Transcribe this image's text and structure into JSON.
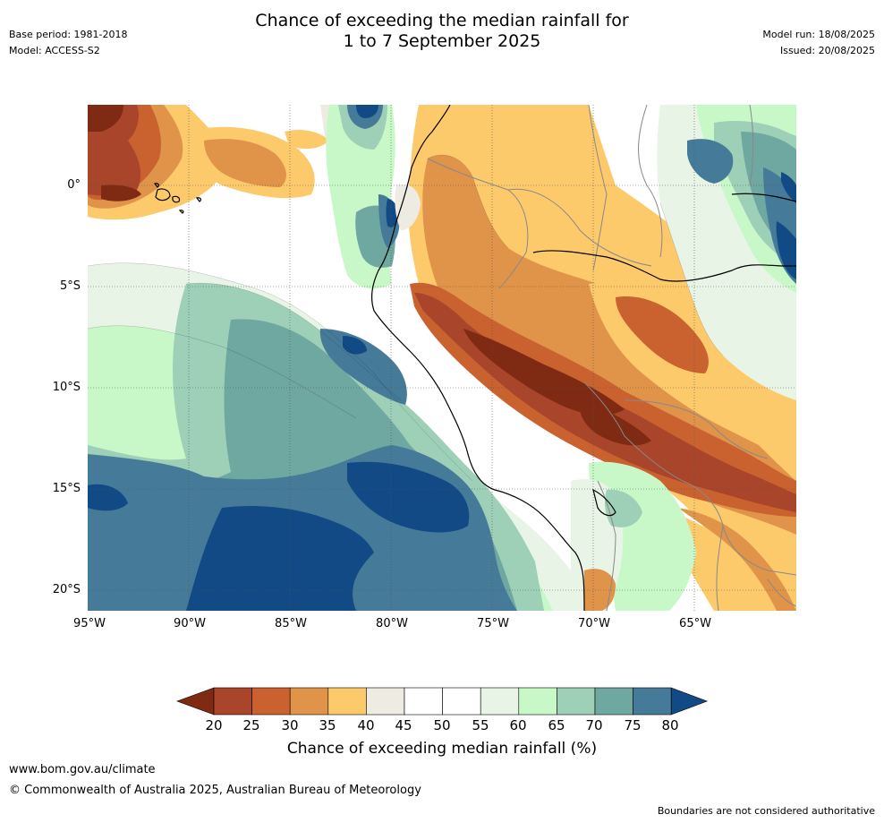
{
  "header": {
    "base_period": "Base period: 1981-2018",
    "model": "Model: ACCESS-S2",
    "title_line1": "Chance of exceeding the median rainfall for",
    "title_line2": "1 to 7 September 2025",
    "model_run": "Model run: 18/08/2025",
    "issued": "Issued: 20/08/2025"
  },
  "map": {
    "lat_labels": [
      "0°",
      "5°S",
      "10°S",
      "15°S",
      "20°S"
    ],
    "lon_labels": [
      "95°W",
      "90°W",
      "85°W",
      "80°W",
      "75°W",
      "70°W",
      "65°W"
    ],
    "colors": {
      "c20": "#7f2a12",
      "c25": "#a8452a",
      "c30": "#c9622f",
      "c35": "#e0944a",
      "c40": "#fdca6b",
      "c45": "#eeebe3",
      "c50": "#ffffff",
      "c55": "#ffffff",
      "c60": "#e8f5e6",
      "c65": "#c8f8c8",
      "c70": "#9ecfb7",
      "c75": "#6fa7a1",
      "c80": "#457b98",
      "c85": "#124a86"
    }
  },
  "colorbar": {
    "ticks": [
      "20",
      "25",
      "30",
      "35",
      "40",
      "45",
      "50",
      "55",
      "60",
      "65",
      "70",
      "75",
      "80"
    ],
    "colors": [
      "#7f2a12",
      "#a8452a",
      "#c9622f",
      "#e0944a",
      "#fdca6b",
      "#eeebe3",
      "#ffffff",
      "#ffffff",
      "#e8f5e6",
      "#c8f8c8",
      "#9ecfb7",
      "#6fa7a1",
      "#457b98",
      "#124a86"
    ],
    "label": "Chance of exceeding median rainfall (%)"
  },
  "footer": {
    "url": "www.bom.gov.au/climate",
    "copyright": "© Commonwealth of Australia 2025, Australian Bureau of Meteorology",
    "note": "Boundaries are not considered authoritative"
  }
}
